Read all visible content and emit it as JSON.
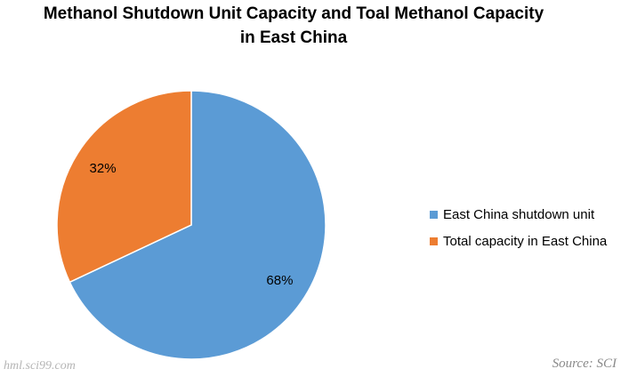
{
  "chart_data": {
    "type": "pie",
    "title_lines": [
      "Methanol Shutdown Unit Capacity and Toal Methanol Capacity",
      "in East China"
    ],
    "slices": [
      {
        "name": "East China shutdown unit",
        "value": 68,
        "label": "68%",
        "color": "#5B9BD5"
      },
      {
        "name": "Total capacity in East China",
        "value": 32,
        "label": "32%",
        "color": "#ED7D31"
      }
    ],
    "legend_position": "right"
  },
  "source": "Source: SCI",
  "watermark": "hml.sci99.com"
}
